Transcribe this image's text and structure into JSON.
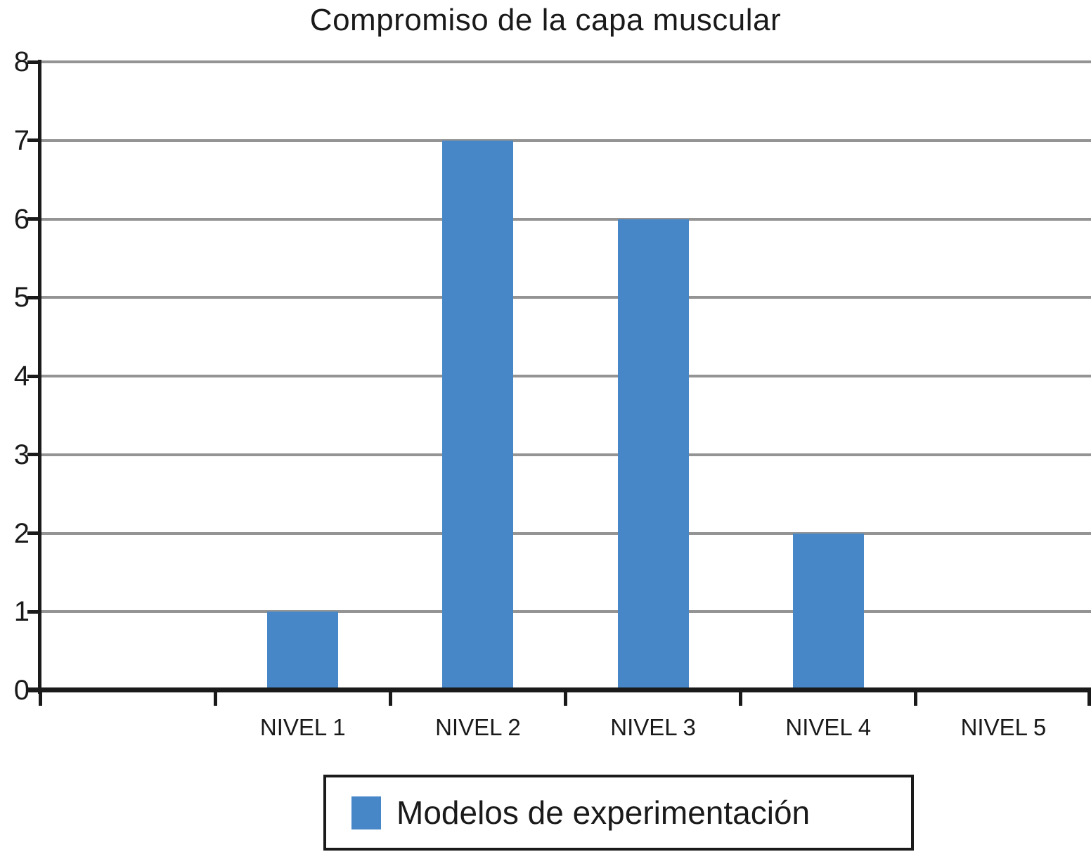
{
  "chart_data": {
    "type": "bar",
    "title": "Compromiso de la capa muscular",
    "categories": [
      "NIVEL 1",
      "NIVEL 2",
      "NIVEL 3",
      "NIVEL 4",
      "NIVEL 5"
    ],
    "values": [
      1,
      7,
      6,
      2,
      0
    ],
    "series_name": "Modelos de experimentación",
    "xlabel": "",
    "ylabel": "",
    "ylim": [
      0,
      8
    ],
    "yticks": [
      0,
      1,
      2,
      3,
      4,
      5,
      6,
      7,
      8
    ],
    "grid": true,
    "legend_position": "bottom",
    "leading_empty_slot": true,
    "bar_color": "#4787c8",
    "gridline_color": "#949494",
    "axis_color": "#1a1a1a",
    "text_color": "#1a1a1a",
    "background_color": "#ffffff"
  },
  "legend": {
    "label": "Modelos de experimentación"
  }
}
